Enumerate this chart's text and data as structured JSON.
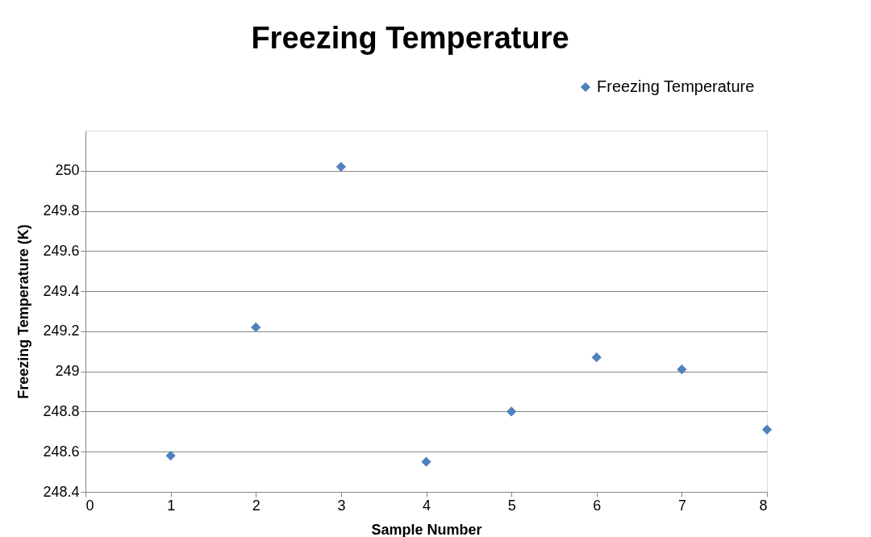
{
  "chart_data": {
    "type": "scatter",
    "title": "Freezing Temperature",
    "xlabel": "Sample Number",
    "ylabel": "Freezing Temperature (K)",
    "x": [
      1,
      2,
      3,
      4,
      5,
      6,
      7,
      8
    ],
    "series": [
      {
        "name": "Freezing Temperature",
        "color": "#4f81bd",
        "values": [
          248.58,
          249.22,
          250.02,
          248.55,
          248.8,
          249.07,
          249.01,
          248.71
        ]
      }
    ],
    "xlim": [
      0,
      8
    ],
    "xticks": [
      0,
      1,
      2,
      3,
      4,
      5,
      6,
      7,
      8
    ],
    "ylim": [
      248.4,
      250.2
    ],
    "yticks": [
      248.4,
      248.6,
      248.8,
      249,
      249.2,
      249.4,
      249.6,
      249.8,
      250
    ],
    "grid": "y",
    "legend": "top right",
    "marker": "diamond"
  }
}
